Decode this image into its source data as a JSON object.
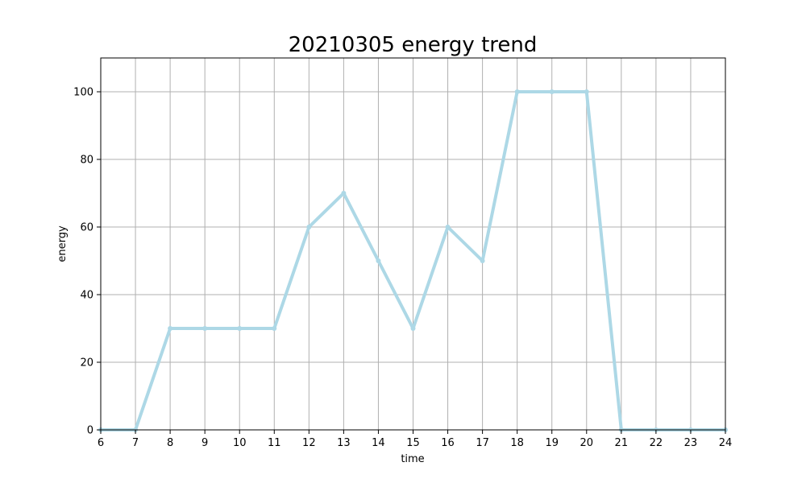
{
  "chart_data": {
    "type": "line",
    "title": "20210305 energy trend",
    "xlabel": "time",
    "ylabel": "energy",
    "xlim": [
      6,
      24
    ],
    "ylim": [
      0,
      110
    ],
    "xticks": [
      6,
      7,
      8,
      9,
      10,
      11,
      12,
      13,
      14,
      15,
      16,
      17,
      18,
      19,
      20,
      21,
      22,
      23,
      24
    ],
    "yticks": [
      0,
      20,
      40,
      60,
      80,
      100
    ],
    "grid": true,
    "series": [
      {
        "color": "#add8e6",
        "x": [
          6,
          7,
          8,
          9,
          10,
          11,
          12,
          13,
          14,
          15,
          16,
          17,
          18,
          19,
          20,
          21,
          22,
          23,
          24
        ],
        "y": [
          0,
          0,
          30,
          30,
          30,
          30,
          60,
          70,
          50,
          30,
          60,
          50,
          100,
          100,
          100,
          0,
          0,
          0,
          0
        ]
      }
    ]
  }
}
